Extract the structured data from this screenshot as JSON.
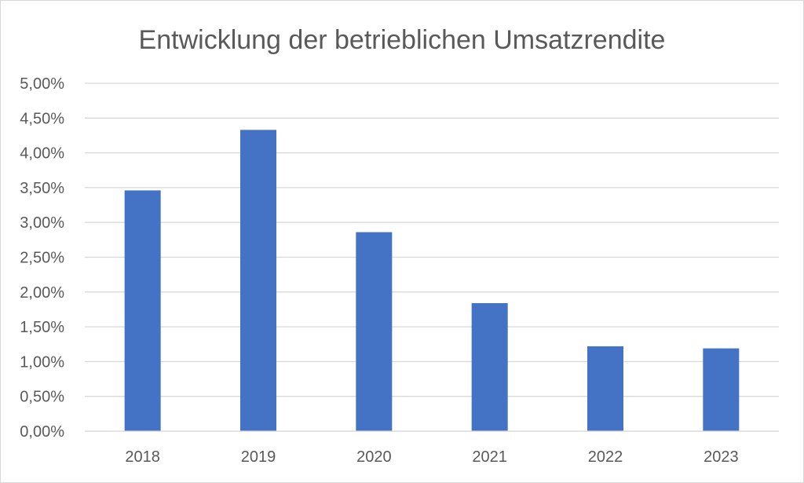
{
  "chart_data": {
    "type": "bar",
    "title": "Entwicklung der betrieblichen Umsatzrendite",
    "xlabel": "",
    "ylabel": "",
    "categories": [
      "2018",
      "2019",
      "2020",
      "2021",
      "2022",
      "2023"
    ],
    "values": [
      3.46,
      4.33,
      2.86,
      1.84,
      1.22,
      1.19
    ],
    "unit": "%",
    "ylim": [
      0,
      5
    ],
    "yticks": [
      0,
      0.5,
      1,
      1.5,
      2,
      2.5,
      3,
      3.5,
      4,
      4.5,
      5
    ],
    "ytick_labels": [
      "0,00%",
      "0,50%",
      "1,00%",
      "1,50%",
      "2,00%",
      "2,50%",
      "3,00%",
      "3,50%",
      "4,00%",
      "4,50%",
      "5,00%"
    ],
    "grid": true,
    "legend": "none",
    "bar_color": "#4472C4",
    "grid_color": "#d9d9d9",
    "text_color": "#595959"
  }
}
